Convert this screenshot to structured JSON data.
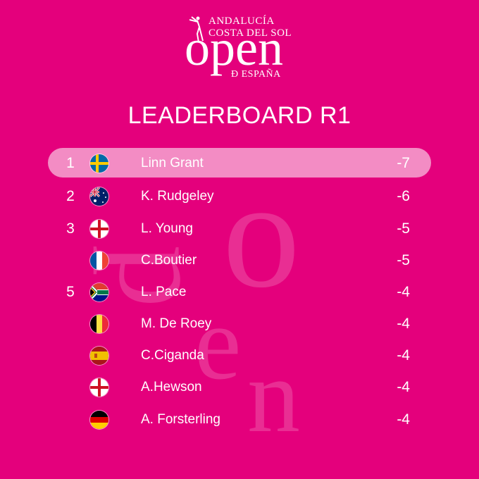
{
  "logo": {
    "line1": "ANDALUCÍA",
    "line2": "COSTA DEL SOL",
    "word": "open",
    "line3": "Ð ESPAÑA"
  },
  "title": "LEADERBOARD R1",
  "watermark": {
    "o": "o",
    "p": "p",
    "e": "e",
    "n": "n"
  },
  "colors": {
    "background": "#e4007c",
    "highlight": "#f08cc4",
    "text": "#ffffff"
  },
  "rows": [
    {
      "pos": "1",
      "flag": "sweden-flag-icon",
      "name": "Linn Grant",
      "score": "-7",
      "highlighted": true
    },
    {
      "pos": "2",
      "flag": "australia-flag-icon",
      "name": "K. Rudgeley",
      "score": "-6"
    },
    {
      "pos": "3",
      "flag": "england-flag-icon",
      "name": "L. Young",
      "score": "-5"
    },
    {
      "pos": "",
      "flag": "france-flag-icon",
      "name": "C.Boutier",
      "score": "-5"
    },
    {
      "pos": "5",
      "flag": "south-africa-flag-icon",
      "name": "L. Pace",
      "score": "-4"
    },
    {
      "pos": "",
      "flag": "belgium-flag-icon",
      "name": "M. De Roey",
      "score": "-4"
    },
    {
      "pos": "",
      "flag": "spain-flag-icon",
      "name": "C.Ciganda",
      "score": "-4"
    },
    {
      "pos": "",
      "flag": "england-flag-icon",
      "name": "A.Hewson",
      "score": "-4"
    },
    {
      "pos": "",
      "flag": "germany-flag-icon",
      "name": "A. Forsterling",
      "score": "-4"
    }
  ]
}
